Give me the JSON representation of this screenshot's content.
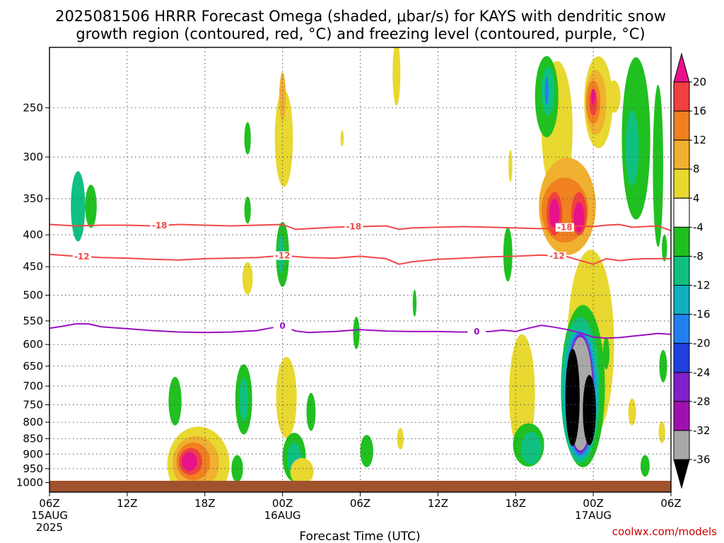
{
  "chart_data": {
    "type": "heatmap",
    "title_lines": [
      "2025081506 HRRR Forecast Omega (shaded, μbar/s) for KAYS with dendritic snow",
      "growth region (contoured, red, °C) and freezing level (contoured, purple, °C)"
    ],
    "xlabel": "Forecast Time (UTC)",
    "credit": "coolwx.com/models",
    "y_axis": {
      "type": "log-pressure",
      "ticks": [
        250,
        300,
        350,
        400,
        450,
        500,
        550,
        600,
        650,
        700,
        750,
        800,
        850,
        900,
        950,
        1000
      ],
      "tick_labels": [
        "250",
        "300",
        "350",
        "400",
        "450",
        "500",
        "550",
        "600",
        "650",
        "700",
        "750",
        "800",
        "850",
        "900",
        "950",
        "1000"
      ],
      "range": [
        200,
        1025
      ]
    },
    "x_axis": {
      "range_hours": [
        0,
        48
      ],
      "ticks": [
        {
          "hour": 0,
          "lines": [
            "06Z",
            "15AUG",
            "2025"
          ]
        },
        {
          "hour": 6,
          "lines": [
            "12Z"
          ]
        },
        {
          "hour": 12,
          "lines": [
            "18Z"
          ]
        },
        {
          "hour": 18,
          "lines": [
            "00Z",
            "16AUG"
          ]
        },
        {
          "hour": 24,
          "lines": [
            "06Z"
          ]
        },
        {
          "hour": 30,
          "lines": [
            "12Z"
          ]
        },
        {
          "hour": 36,
          "lines": [
            "18Z"
          ]
        },
        {
          "hour": 42,
          "lines": [
            "00Z",
            "17AUG"
          ]
        },
        {
          "hour": 48,
          "lines": [
            "06Z"
          ]
        }
      ]
    },
    "colorbar": {
      "labels": [
        "20",
        "16",
        "12",
        "8",
        "4",
        "-4",
        "-8",
        "-12",
        "-16",
        "-20",
        "-24",
        "-28",
        "-32",
        "-36"
      ],
      "bands": [
        {
          "color": "#e8128a"
        },
        {
          "color": "#f04040"
        },
        {
          "color": "#f08020"
        },
        {
          "color": "#f0b030"
        },
        {
          "color": "#e8d830"
        },
        {
          "color": "#ffffff"
        },
        {
          "color": "#20c020"
        },
        {
          "color": "#10c080"
        },
        {
          "color": "#10b0c0"
        },
        {
          "color": "#2080f0"
        },
        {
          "color": "#2040e0"
        },
        {
          "color": "#8020c8"
        },
        {
          "color": "#a010b0"
        },
        {
          "color": "#a8a8a8"
        },
        {
          "color": "#000000"
        }
      ]
    },
    "contours": [
      {
        "label": "-18",
        "color": "#f04848",
        "label_hours": [
          8.5,
          23.5,
          39.8
        ],
        "points": [
          [
            0,
            385
          ],
          [
            2,
            387
          ],
          [
            4,
            386
          ],
          [
            6,
            386
          ],
          [
            8,
            387
          ],
          [
            10,
            385
          ],
          [
            12,
            386
          ],
          [
            14,
            387
          ],
          [
            16,
            386
          ],
          [
            18,
            385
          ],
          [
            19,
            392
          ],
          [
            20,
            391
          ],
          [
            22,
            389
          ],
          [
            24,
            388
          ],
          [
            26,
            387
          ],
          [
            27,
            392
          ],
          [
            28,
            390
          ],
          [
            30,
            389
          ],
          [
            32,
            388
          ],
          [
            34,
            389
          ],
          [
            36,
            390
          ],
          [
            38,
            391
          ],
          [
            40,
            389
          ],
          [
            41,
            387
          ],
          [
            42,
            388
          ],
          [
            43,
            386
          ],
          [
            44,
            385
          ],
          [
            45,
            389
          ],
          [
            46,
            388
          ],
          [
            47,
            387
          ],
          [
            48,
            394
          ]
        ]
      },
      {
        "label": "-12",
        "color": "#f04848",
        "label_hours": [
          2.5,
          18.0,
          39.2
        ],
        "points": [
          [
            0,
            430
          ],
          [
            2,
            433
          ],
          [
            4,
            435
          ],
          [
            6,
            436
          ],
          [
            8,
            438
          ],
          [
            10,
            439
          ],
          [
            12,
            437
          ],
          [
            14,
            436
          ],
          [
            16,
            435
          ],
          [
            18,
            432
          ],
          [
            20,
            435
          ],
          [
            22,
            436
          ],
          [
            24,
            433
          ],
          [
            26,
            437
          ],
          [
            27,
            446
          ],
          [
            28,
            442
          ],
          [
            30,
            438
          ],
          [
            32,
            436
          ],
          [
            34,
            434
          ],
          [
            36,
            433
          ],
          [
            38,
            431
          ],
          [
            40,
            434
          ],
          [
            41,
            440
          ],
          [
            42,
            446
          ],
          [
            43,
            437
          ],
          [
            44,
            440
          ],
          [
            45,
            438
          ],
          [
            46,
            437
          ],
          [
            47,
            437
          ],
          [
            48,
            437
          ]
        ]
      },
      {
        "label": "0",
        "color": "#9a10c0",
        "label_hours": [
          18.0,
          33.0
        ],
        "points": [
          [
            0,
            565
          ],
          [
            1,
            561
          ],
          [
            2,
            556
          ],
          [
            3,
            556
          ],
          [
            4,
            562
          ],
          [
            6,
            566
          ],
          [
            8,
            570
          ],
          [
            10,
            573
          ],
          [
            12,
            574
          ],
          [
            14,
            573
          ],
          [
            16,
            570
          ],
          [
            17,
            565
          ],
          [
            18,
            560
          ],
          [
            19,
            571
          ],
          [
            20,
            574
          ],
          [
            22,
            572
          ],
          [
            24,
            568
          ],
          [
            26,
            571
          ],
          [
            28,
            572
          ],
          [
            30,
            572
          ],
          [
            32,
            573
          ],
          [
            34,
            572
          ],
          [
            35,
            569
          ],
          [
            36,
            572
          ],
          [
            37,
            565
          ],
          [
            38,
            559
          ],
          [
            39,
            563
          ],
          [
            40,
            568
          ],
          [
            41,
            575
          ],
          [
            42,
            584
          ],
          [
            43,
            586
          ],
          [
            44,
            585
          ],
          [
            45,
            582
          ],
          [
            46,
            579
          ],
          [
            47,
            576
          ],
          [
            48,
            578
          ]
        ]
      }
    ],
    "omega_cells": [
      {
        "h": 2.2,
        "p": 360,
        "rh": 0.55,
        "lp": 0.13,
        "v": -12
      },
      {
        "h": 3.2,
        "p": 360,
        "rh": 0.45,
        "lp": 0.08,
        "v": -8
      },
      {
        "h": 11.5,
        "p": 935,
        "rh": 2.4,
        "lp": 0.14,
        "v": 4
      },
      {
        "h": 11.3,
        "p": 930,
        "rh": 1.8,
        "lp": 0.1,
        "v": 8
      },
      {
        "h": 11.1,
        "p": 925,
        "rh": 1.3,
        "lp": 0.07,
        "v": 12
      },
      {
        "h": 10.9,
        "p": 925,
        "rh": 0.9,
        "lp": 0.05,
        "v": 16
      },
      {
        "h": 10.8,
        "p": 925,
        "rh": 0.6,
        "lp": 0.035,
        "v": 20
      },
      {
        "h": 9.7,
        "p": 740,
        "rh": 0.5,
        "lp": 0.09,
        "v": -8
      },
      {
        "h": 15.3,
        "p": 280,
        "rh": 0.25,
        "lp": 0.06,
        "v": -8
      },
      {
        "h": 15.3,
        "p": 365,
        "rh": 0.25,
        "lp": 0.05,
        "v": -8
      },
      {
        "h": 15.3,
        "p": 470,
        "rh": 0.4,
        "lp": 0.06,
        "v": 4
      },
      {
        "h": 15.0,
        "p": 735,
        "rh": 0.65,
        "lp": 0.13,
        "v": -8
      },
      {
        "h": 15.0,
        "p": 735,
        "rh": 0.35,
        "lp": 0.08,
        "v": -12
      },
      {
        "h": 14.5,
        "p": 950,
        "rh": 0.45,
        "lp": 0.05,
        "v": -8
      },
      {
        "h": 18.1,
        "p": 280,
        "rh": 0.7,
        "lp": 0.18,
        "v": 4
      },
      {
        "h": 18.0,
        "p": 240,
        "rh": 0.25,
        "lp": 0.09,
        "v": 8
      },
      {
        "h": 18.0,
        "p": 430,
        "rh": 0.5,
        "lp": 0.12,
        "v": -8
      },
      {
        "h": 17.9,
        "p": 430,
        "rh": 0.25,
        "lp": 0.07,
        "v": -12
      },
      {
        "h": 18.3,
        "p": 730,
        "rh": 0.8,
        "lp": 0.15,
        "v": 4
      },
      {
        "h": 18.9,
        "p": 910,
        "rh": 0.9,
        "lp": 0.09,
        "v": -8
      },
      {
        "h": 18.9,
        "p": 915,
        "rh": 0.55,
        "lp": 0.06,
        "v": -12
      },
      {
        "h": 19.0,
        "p": 940,
        "rh": 0.25,
        "lp": 0.03,
        "v": -16
      },
      {
        "h": 20.2,
        "p": 770,
        "rh": 0.35,
        "lp": 0.07,
        "v": -8
      },
      {
        "h": 19.5,
        "p": 960,
        "rh": 0.9,
        "lp": 0.05,
        "v": 4
      },
      {
        "h": 22.6,
        "p": 280,
        "rh": 0.12,
        "lp": 0.03,
        "v": 4
      },
      {
        "h": 23.7,
        "p": 575,
        "rh": 0.25,
        "lp": 0.06,
        "v": -8
      },
      {
        "h": 24.5,
        "p": 890,
        "rh": 0.5,
        "lp": 0.06,
        "v": -8
      },
      {
        "h": 26.8,
        "p": 220,
        "rh": 0.3,
        "lp": 0.12,
        "v": 4
      },
      {
        "h": 27.1,
        "p": 850,
        "rh": 0.25,
        "lp": 0.04,
        "v": 4
      },
      {
        "h": 28.2,
        "p": 515,
        "rh": 0.15,
        "lp": 0.05,
        "v": -8
      },
      {
        "h": 35.6,
        "p": 310,
        "rh": 0.15,
        "lp": 0.06,
        "v": 4
      },
      {
        "h": 35.4,
        "p": 430,
        "rh": 0.35,
        "lp": 0.1,
        "v": -8
      },
      {
        "h": 36.5,
        "p": 720,
        "rh": 1.0,
        "lp": 0.22,
        "v": 4
      },
      {
        "h": 37.0,
        "p": 870,
        "rh": 1.2,
        "lp": 0.08,
        "v": -8
      },
      {
        "h": 37.2,
        "p": 880,
        "rh": 0.8,
        "lp": 0.06,
        "v": -12
      },
      {
        "h": 39.2,
        "p": 270,
        "rh": 1.2,
        "lp": 0.25,
        "v": 4
      },
      {
        "h": 40.0,
        "p": 360,
        "rh": 2.2,
        "lp": 0.18,
        "v": 8
      },
      {
        "h": 39.8,
        "p": 365,
        "rh": 1.8,
        "lp": 0.12,
        "v": 12
      },
      {
        "h": 39.0,
        "p": 370,
        "rh": 0.6,
        "lp": 0.08,
        "v": 16
      },
      {
        "h": 39.0,
        "p": 370,
        "rh": 0.4,
        "lp": 0.055,
        "v": 20
      },
      {
        "h": 40.9,
        "p": 370,
        "rh": 0.6,
        "lp": 0.08,
        "v": 16
      },
      {
        "h": 40.9,
        "p": 375,
        "rh": 0.4,
        "lp": 0.055,
        "v": 20
      },
      {
        "h": 38.4,
        "p": 240,
        "rh": 0.9,
        "lp": 0.15,
        "v": -8
      },
      {
        "h": 38.5,
        "p": 235,
        "rh": 0.5,
        "lp": 0.09,
        "v": -12
      },
      {
        "h": 38.4,
        "p": 235,
        "rh": 0.15,
        "lp": 0.05,
        "v": -20
      },
      {
        "h": 42.4,
        "p": 245,
        "rh": 1.1,
        "lp": 0.17,
        "v": 4
      },
      {
        "h": 42.2,
        "p": 245,
        "rh": 0.8,
        "lp": 0.12,
        "v": 8
      },
      {
        "h": 42.0,
        "p": 245,
        "rh": 0.55,
        "lp": 0.08,
        "v": 12
      },
      {
        "h": 42.0,
        "p": 245,
        "rh": 0.3,
        "lp": 0.05,
        "v": 16
      },
      {
        "h": 42.0,
        "p": 240,
        "rh": 0.15,
        "lp": 0.03,
        "v": 20
      },
      {
        "h": 43.6,
        "p": 240,
        "rh": 0.5,
        "lp": 0.06,
        "v": 4
      },
      {
        "h": 45.3,
        "p": 280,
        "rh": 1.1,
        "lp": 0.3,
        "v": -8
      },
      {
        "h": 45.0,
        "p": 290,
        "rh": 0.5,
        "lp": 0.14,
        "v": -12
      },
      {
        "h": 47.0,
        "p": 310,
        "rh": 0.4,
        "lp": 0.3,
        "v": -8
      },
      {
        "h": 41.8,
        "p": 600,
        "rh": 1.8,
        "lp": 0.35,
        "v": 4
      },
      {
        "h": 41.2,
        "p": 700,
        "rh": 1.7,
        "lp": 0.3,
        "v": -8
      },
      {
        "h": 41.0,
        "p": 710,
        "rh": 1.5,
        "lp": 0.27,
        "v": -12
      },
      {
        "h": 41.0,
        "p": 720,
        "rh": 1.3,
        "lp": 0.24,
        "v": -16
      },
      {
        "h": 41.0,
        "p": 720,
        "rh": 1.15,
        "lp": 0.23,
        "v": -20
      },
      {
        "h": 41.0,
        "p": 720,
        "rh": 1.05,
        "lp": 0.22,
        "v": -28
      },
      {
        "h": 41.0,
        "p": 720,
        "rh": 0.95,
        "lp": 0.21,
        "v": -32
      },
      {
        "h": 40.4,
        "p": 730,
        "rh": 0.55,
        "lp": 0.18,
        "v": -36
      },
      {
        "h": 41.7,
        "p": 765,
        "rh": 0.5,
        "lp": 0.13,
        "v": -36
      },
      {
        "h": 43.1,
        "p": 560,
        "rh": 0.3,
        "lp": 0.1,
        "v": 4
      },
      {
        "h": 43.0,
        "p": 620,
        "rh": 0.25,
        "lp": 0.06,
        "v": -8
      },
      {
        "h": 45.0,
        "p": 770,
        "rh": 0.3,
        "lp": 0.05,
        "v": 4
      },
      {
        "h": 46.0,
        "p": 940,
        "rh": 0.35,
        "lp": 0.04,
        "v": -8
      },
      {
        "h": 47.4,
        "p": 650,
        "rh": 0.3,
        "lp": 0.06,
        "v": -8
      },
      {
        "h": 47.3,
        "p": 830,
        "rh": 0.25,
        "lp": 0.04,
        "v": 4
      },
      {
        "h": 47.5,
        "p": 420,
        "rh": 0.2,
        "lp": 0.05,
        "v": -8
      }
    ]
  }
}
